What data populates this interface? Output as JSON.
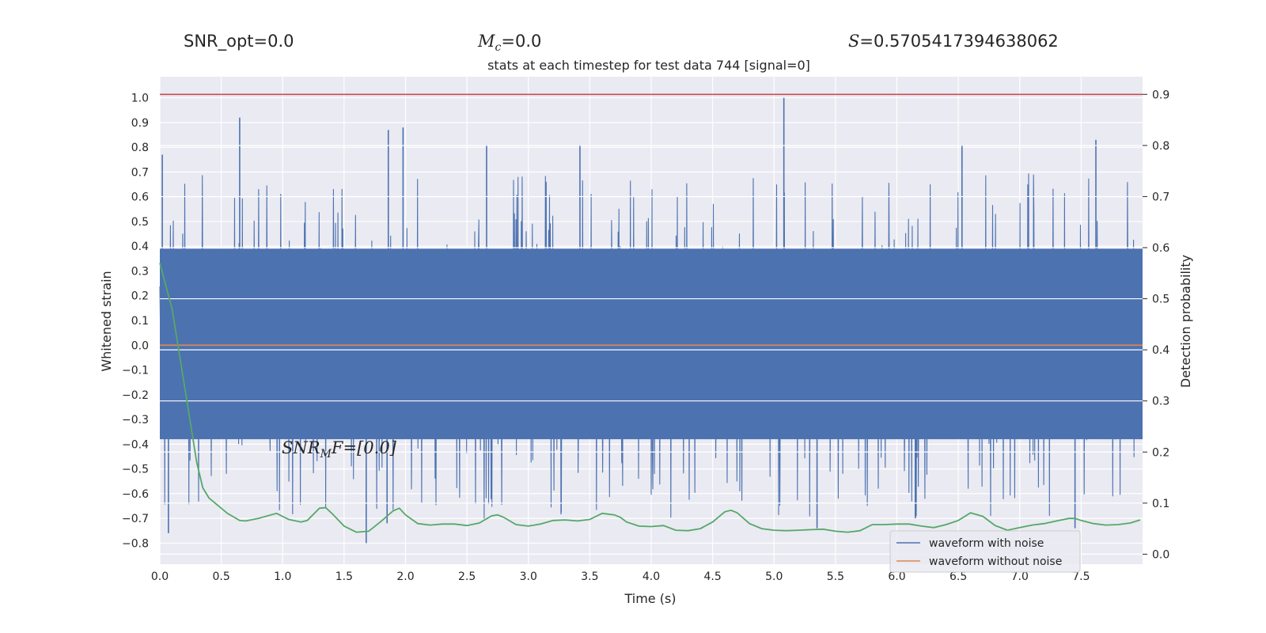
{
  "header": {
    "snr_opt": "SNR_opt=0.0",
    "mc_symbol": "M",
    "mc_sub": "c",
    "mc_value": "=0.0",
    "s_symbol": "S",
    "s_value": "=0.5705417394638062"
  },
  "chart_data": {
    "type": "line",
    "title": "stats at each timestep for test data 744 [signal=0]",
    "xlabel": "Time (s)",
    "ylabel": "Whitened strain",
    "y2label": "Detection probability",
    "xlim": [
      0.0,
      8.0
    ],
    "ylim": [
      -0.885,
      1.085
    ],
    "y2lim": [
      -0.0195,
      0.9345
    ],
    "x_ticks": [
      "0.0",
      "0.5",
      "1.0",
      "1.5",
      "2.0",
      "2.5",
      "3.0",
      "3.5",
      "4.0",
      "4.5",
      "5.0",
      "5.5",
      "6.0",
      "6.5",
      "7.0",
      "7.5"
    ],
    "y_ticks": [
      "1.0",
      "0.9",
      "0.8",
      "0.7",
      "0.6",
      "0.5",
      "0.4",
      "0.3",
      "0.2",
      "0.1",
      "0.0",
      "−0.1",
      "−0.2",
      "−0.3",
      "−0.4",
      "−0.5",
      "−0.6",
      "−0.7",
      "−0.8"
    ],
    "y2_ticks": [
      "0.9",
      "0.8",
      "0.7",
      "0.6",
      "0.5",
      "0.4",
      "0.3",
      "0.2",
      "0.1",
      "0.0"
    ],
    "annotation": {
      "base": "SNR",
      "sub": "M",
      "tail": "F=[0.0]"
    },
    "threshold": {
      "y2": 0.9,
      "color": "#c44e52"
    },
    "legend": {
      "placement": "lower-right",
      "entries": [
        "waveform with noise",
        "waveform without noise"
      ]
    },
    "series": [
      {
        "name": "waveform with noise",
        "color": "#4c72b0",
        "envelope": "dense noise, core band approx −0.40 to 0.40",
        "peaks": [
          {
            "x": 0.02,
            "y": 0.77
          },
          {
            "x": 0.65,
            "y": 0.92
          },
          {
            "x": 1.86,
            "y": 0.87
          },
          {
            "x": 1.98,
            "y": 0.88
          },
          {
            "x": 2.66,
            "y": 0.81
          },
          {
            "x": 3.42,
            "y": 0.81
          },
          {
            "x": 5.08,
            "y": 1.0
          },
          {
            "x": 6.53,
            "y": 0.81
          },
          {
            "x": 7.62,
            "y": 0.83
          }
        ],
        "troughs": [
          {
            "x": 0.07,
            "y": -0.76
          },
          {
            "x": 1.68,
            "y": -0.8
          },
          {
            "x": 1.85,
            "y": -0.72
          },
          {
            "x": 5.35,
            "y": -0.74
          },
          {
            "x": 6.15,
            "y": -0.7
          },
          {
            "x": 7.45,
            "y": -0.74
          }
        ]
      },
      {
        "name": "waveform without noise",
        "color": "#dd8452",
        "x": [
          0.0,
          8.0
        ],
        "y": [
          0.0,
          0.0
        ]
      },
      {
        "color": "#55a868",
        "axis": "y2",
        "x": [
          0.0,
          0.1,
          0.2,
          0.3,
          0.35,
          0.4,
          0.5,
          0.55,
          0.65,
          0.7,
          0.8,
          0.95,
          1.05,
          1.15,
          1.2,
          1.3,
          1.35,
          1.4,
          1.5,
          1.6,
          1.7,
          1.8,
          1.9,
          1.95,
          2.0,
          2.1,
          2.2,
          2.3,
          2.4,
          2.5,
          2.6,
          2.7,
          2.75,
          2.8,
          2.9,
          3.0,
          3.1,
          3.2,
          3.3,
          3.4,
          3.5,
          3.6,
          3.7,
          3.75,
          3.8,
          3.9,
          4.0,
          4.1,
          4.2,
          4.3,
          4.4,
          4.5,
          4.6,
          4.65,
          4.7,
          4.8,
          4.9,
          5.0,
          5.1,
          5.2,
          5.3,
          5.4,
          5.5,
          5.6,
          5.7,
          5.8,
          5.9,
          6.0,
          6.1,
          6.2,
          6.3,
          6.4,
          6.5,
          6.6,
          6.7,
          6.8,
          6.9,
          7.0,
          7.1,
          7.2,
          7.3,
          7.4,
          7.45,
          7.5,
          7.6,
          7.7,
          7.8,
          7.9,
          7.98
        ],
        "y": [
          0.57,
          0.48,
          0.33,
          0.18,
          0.13,
          0.11,
          0.09,
          0.08,
          0.066,
          0.065,
          0.07,
          0.08,
          0.068,
          0.063,
          0.066,
          0.09,
          0.091,
          0.08,
          0.055,
          0.043,
          0.045,
          0.064,
          0.085,
          0.09,
          0.077,
          0.06,
          0.057,
          0.059,
          0.059,
          0.056,
          0.061,
          0.075,
          0.077,
          0.072,
          0.058,
          0.055,
          0.059,
          0.066,
          0.067,
          0.065,
          0.068,
          0.08,
          0.077,
          0.072,
          0.063,
          0.055,
          0.054,
          0.056,
          0.047,
          0.046,
          0.05,
          0.063,
          0.083,
          0.086,
          0.081,
          0.06,
          0.05,
          0.047,
          0.046,
          0.047,
          0.048,
          0.049,
          0.045,
          0.043,
          0.046,
          0.058,
          0.058,
          0.059,
          0.059,
          0.055,
          0.052,
          0.058,
          0.066,
          0.081,
          0.074,
          0.056,
          0.047,
          0.052,
          0.057,
          0.06,
          0.065,
          0.07,
          0.07,
          0.066,
          0.06,
          0.057,
          0.058,
          0.061,
          0.067
        ]
      }
    ]
  }
}
